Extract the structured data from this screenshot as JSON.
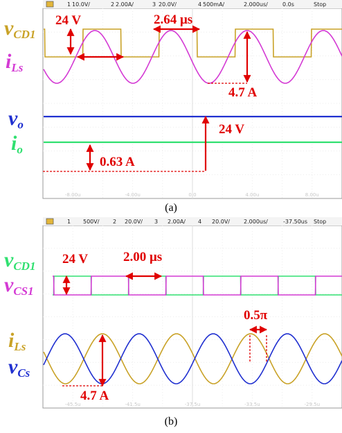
{
  "panel_a": {
    "header": [
      "1",
      "10.0V/",
      "2",
      "2.00A/",
      "3",
      "20.0V/",
      "4",
      "500mA/",
      "2.000us/",
      "0.0s",
      "Stop"
    ],
    "signals": [
      {
        "symbol": "v",
        "subscript": "CD1"
      },
      {
        "symbol": "i",
        "subscript": "Ls"
      },
      {
        "symbol": "v",
        "subscript": "o"
      },
      {
        "symbol": "i",
        "subscript": "o"
      }
    ],
    "annotations": [
      "24 V",
      "2.64 μs",
      "4.7 A",
      "24 V",
      "0.63 A"
    ],
    "time_labels": [
      "-8.00u",
      "-4.00u",
      "0.0",
      "4.00u",
      "8.00u"
    ],
    "caption": "(a)"
  },
  "panel_b": {
    "header": [
      "1",
      "500V/",
      "2",
      "20.0V/",
      "3",
      "2.00A/",
      "4",
      "20.0V/",
      "2.000us/",
      "-37.50us",
      "Stop"
    ],
    "signals": [
      {
        "symbol": "v",
        "subscript": "CD1"
      },
      {
        "symbol": "v",
        "subscript": "CS1"
      },
      {
        "symbol": "i",
        "subscript": "Ls"
      },
      {
        "symbol": "v",
        "subscript": "Cs"
      }
    ],
    "annotations": [
      "24 V",
      "2.00 μs",
      "0.5π",
      "4.7 A"
    ],
    "time_labels": [
      "-45.5u",
      "-41.5u",
      "-37.5u",
      "-33.5u",
      "-29.5u"
    ],
    "caption": "(b)"
  }
}
